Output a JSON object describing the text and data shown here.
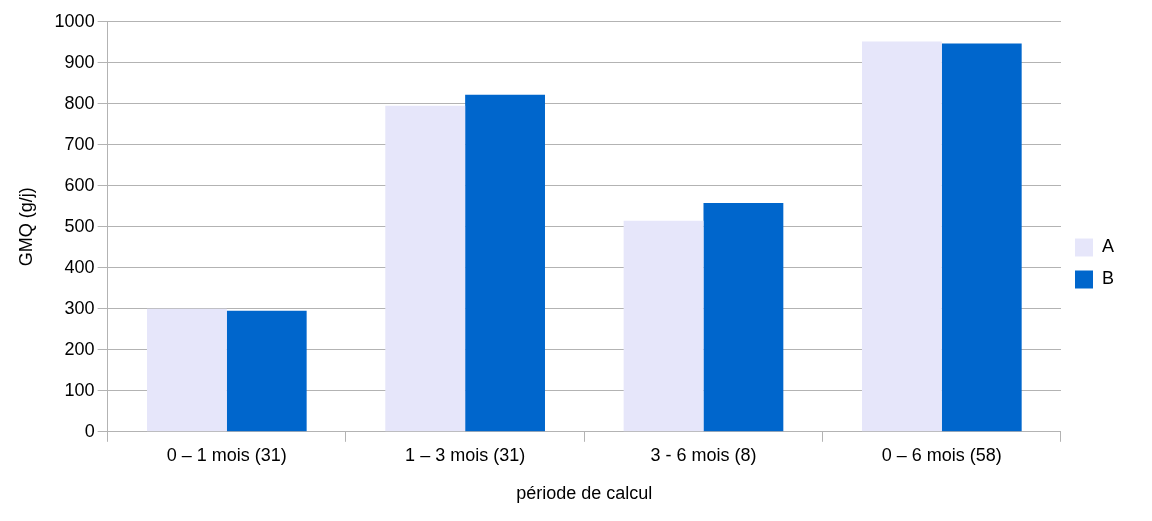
{
  "chart_data": {
    "type": "bar",
    "xlabel": "période de calcul",
    "ylabel": "GMQ (g/j)",
    "categories": [
      "0 – 1 mois (31)",
      "1 – 3 mois (31)",
      "3 - 6 mois (8)",
      "0 – 6 mois (58)"
    ],
    "series": [
      {
        "name": "A",
        "color": "#e6e6fa",
        "values": [
          300,
          795,
          515,
          952
        ]
      },
      {
        "name": "B",
        "color": "#0066cc",
        "values": [
          295,
          822,
          558,
          947
        ]
      }
    ],
    "ylim": [
      0,
      1000
    ],
    "yticks": [
      0,
      100,
      200,
      300,
      400,
      500,
      600,
      700,
      800,
      900,
      1000
    ],
    "grid": "y",
    "legend": "right"
  }
}
